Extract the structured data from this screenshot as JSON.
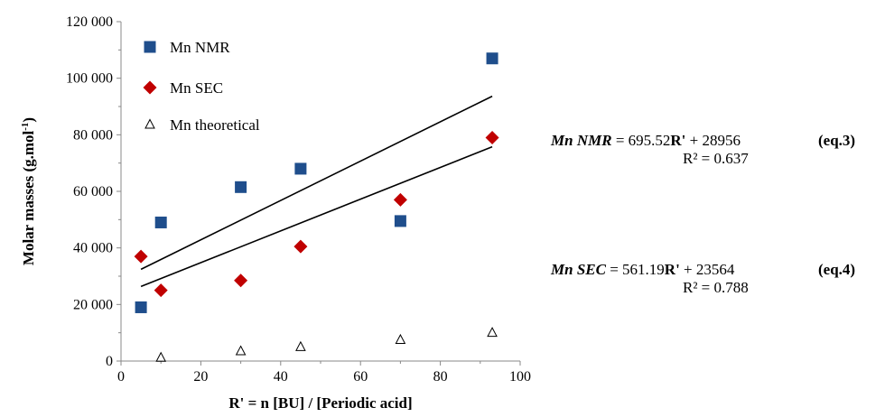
{
  "chart_data": {
    "type": "scatter",
    "xlabel": "R' = n [BU] / [Periodic acid]",
    "ylabel_main": "Molar masses (g.mol",
    "ylabel_sup": "-1",
    "ylabel_close": ")",
    "xlim": [
      0,
      100
    ],
    "ylim": [
      0,
      120000
    ],
    "x_ticks": [
      0,
      20,
      40,
      60,
      80,
      100
    ],
    "y_ticks": [
      0,
      20000,
      40000,
      60000,
      80000,
      100000,
      120000
    ],
    "y_tick_labels": [
      "0",
      "20 000",
      "40 000",
      "60 000",
      "80 000",
      "100 000",
      "120 000"
    ],
    "grid": false,
    "legend_position": "top-left",
    "series": [
      {
        "name": "Mn NMR",
        "marker": "square",
        "color": "#1f4e8c",
        "x": [
          5,
          10,
          30,
          45,
          70,
          93
        ],
        "y": [
          19000,
          49000,
          61500,
          68000,
          49500,
          107000
        ]
      },
      {
        "name": "Mn SEC",
        "marker": "diamond",
        "color": "#c00000",
        "x": [
          5,
          10,
          30,
          45,
          70,
          93
        ],
        "y": [
          37000,
          25000,
          28500,
          40500,
          57000,
          79000
        ]
      },
      {
        "name": "Mn theoretical",
        "marker": "triangle-open",
        "color": "#000000",
        "x": [
          10,
          30,
          45,
          70,
          93
        ],
        "y": [
          1200,
          3500,
          5000,
          7500,
          10000
        ]
      }
    ],
    "trendlines": [
      {
        "series": "Mn NMR",
        "slope": 695.52,
        "intercept": 28956,
        "x_range": [
          5,
          93
        ]
      },
      {
        "series": "Mn SEC",
        "slope": 561.19,
        "intercept": 23564,
        "x_range": [
          5,
          93
        ]
      }
    ]
  },
  "equations": [
    {
      "label": "Mn NMR",
      "eq_mid": " = 695.52",
      "var": "R'",
      "eq_tail": " + 28956",
      "number": "(eq.3)",
      "r2": "R² = 0.637"
    },
    {
      "label": "Mn SEC",
      "eq_mid": " = 561.19",
      "var": "R'",
      "eq_tail": " + 23564",
      "number": "(eq.4)",
      "r2": "R² = 0.788"
    }
  ]
}
